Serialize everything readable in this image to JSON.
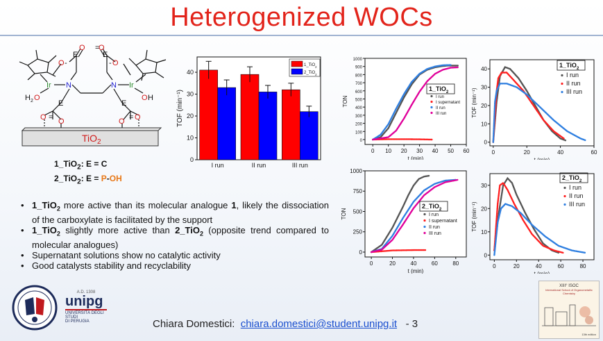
{
  "slide": {
    "title": "Heterogenized WOCs",
    "page_number": "- 3",
    "author": "Chiara Domestici:",
    "email": "chiara.domestici@student.unipg.it"
  },
  "structure": {
    "support": "TiO2",
    "compound_1_label": "1_TiO2: E = C",
    "compound_2_label": "2_TiO2: E = P-OH",
    "compound_1_name": "1_TiO",
    "compound_1_rest": ": E = C",
    "compound_2_name": "2_TiO",
    "compound_2_mid": ": E = ",
    "compound_2_p": "P",
    "compound_2_dash": "-",
    "compound_2_oh": "OH"
  },
  "bullets": [
    "1_TiO2 more active than its molecular analogue 1, likely the dissociation of the carboxylate is facilitated by the support",
    "1_TiO2 slightly more active than 2_TiO2 (opposite trend compared to molecular analogues)",
    "Supernatant solutions show no catalytic activity",
    "Good catalysts stability and recyclability"
  ],
  "bullet_parts": {
    "b1_a": "1_TiO",
    "b1_b": " more active than its molecular analogue ",
    "b1_c": "1",
    "b1_d": ", likely the dissociation of the carboxylate is facilitated by the support",
    "b2_a": "1_TiO",
    "b2_b": " slightly more active than ",
    "b2_c": "2_TiO",
    "b2_d": " (opposite trend compared to molecular analogues)",
    "b3": "Supernatant solutions show no catalytic activity",
    "b4": "Good catalysts stability and recyclability",
    "sub2": "2"
  },
  "logos": {
    "unipg_top": "A.D. 1308",
    "unipg_name": "unipg",
    "unipg_sub1": "UNIVERSITÀ DEGLI STUDI",
    "unipg_sub2": "DI PERUGIA",
    "poster_line1": "XIII° ISOC",
    "poster_line2": "International School of Organometallic Chemistry",
    "poster_edition": "13th edition"
  },
  "chart_data": [
    {
      "type": "bar",
      "ylabel": "TOF (min⁻¹)",
      "categories": [
        "I run",
        "II run",
        "III run"
      ],
      "ylim": [
        0,
        47
      ],
      "yticks": [
        0,
        10,
        20,
        30,
        40
      ],
      "series": [
        {
          "name": "1_TiO2",
          "color": "#ff0000",
          "values": [
            41,
            39,
            32
          ],
          "errors": [
            4,
            3.5,
            3
          ]
        },
        {
          "name": "2_TiO2",
          "color": "#0000ff",
          "values": [
            33,
            31,
            22
          ],
          "errors": [
            3.5,
            3,
            2.5
          ]
        }
      ]
    },
    {
      "type": "line",
      "label": "1_TiO2",
      "xlabel": "t (min)",
      "ylabel": "TON",
      "xlim": [
        -5,
        60
      ],
      "ylim": [
        -60,
        1000
      ],
      "xticks": [
        0,
        10,
        20,
        30,
        40,
        50,
        60
      ],
      "yticks": [
        0,
        100,
        200,
        300,
        400,
        500,
        600,
        700,
        800,
        900,
        1000
      ],
      "legend": [
        "I run",
        "I supernatant",
        "II run",
        "III run"
      ],
      "series": [
        {
          "name": "I run",
          "color": "#555555",
          "x": [
            0,
            5,
            10,
            15,
            20,
            25,
            30,
            35,
            40,
            45,
            48,
            55
          ],
          "y": [
            0,
            30,
            140,
            330,
            520,
            680,
            800,
            860,
            890,
            905,
            910,
            910
          ]
        },
        {
          "name": "I supernatant",
          "color": "#ff2020",
          "x": [
            0,
            10,
            20,
            30,
            38
          ],
          "y": [
            0,
            5,
            5,
            3,
            0
          ]
        },
        {
          "name": "II run",
          "color": "#2f7fe0",
          "x": [
            0,
            5,
            10,
            15,
            20,
            25,
            30,
            35,
            40,
            45,
            50
          ],
          "y": [
            0,
            60,
            190,
            380,
            560,
            710,
            810,
            870,
            900,
            915,
            918
          ]
        },
        {
          "name": "III run",
          "color": "#e0009a",
          "x": [
            0,
            10,
            15,
            20,
            25,
            30,
            35,
            40,
            45,
            50,
            55
          ],
          "y": [
            0,
            30,
            110,
            260,
            430,
            590,
            720,
            810,
            860,
            885,
            890
          ]
        }
      ]
    },
    {
      "type": "line",
      "label": "1_TiO2",
      "xlabel": "t (min)",
      "ylabel": "TOF (min⁻¹)",
      "xlim": [
        -2,
        60
      ],
      "ylim": [
        -2,
        45
      ],
      "xticks": [
        0,
        20,
        40,
        60
      ],
      "yticks": [
        0,
        10,
        20,
        30,
        40
      ],
      "legend": [
        "I run",
        "II run",
        "III run"
      ],
      "series": [
        {
          "name": "I run",
          "color": "#555555",
          "x": [
            0,
            2,
            4,
            7,
            10,
            15,
            20,
            25,
            30,
            35,
            40,
            43
          ],
          "y": [
            0,
            22,
            36,
            41,
            40,
            35,
            28,
            20,
            12,
            6,
            2,
            1
          ]
        },
        {
          "name": "II run",
          "color": "#ff2020",
          "x": [
            0,
            2,
            3,
            5,
            8,
            12,
            18,
            24,
            30,
            36,
            42
          ],
          "y": [
            0,
            28,
            35,
            38,
            38,
            34,
            28,
            20,
            12,
            6,
            2
          ]
        },
        {
          "name": "III run",
          "color": "#2f7fe0",
          "x": [
            0,
            1,
            2,
            4,
            8,
            14,
            20,
            28,
            36,
            44,
            52,
            55
          ],
          "y": [
            0,
            22,
            28,
            32,
            32,
            30,
            26,
            19,
            12,
            6,
            2,
            1
          ]
        }
      ]
    },
    {
      "type": "line",
      "label": "2_TiO2",
      "xlabel": "t (min)",
      "ylabel": "TON",
      "xlim": [
        -6,
        90
      ],
      "ylim": [
        -60,
        1000
      ],
      "xticks": [
        0,
        20,
        40,
        60,
        80
      ],
      "yticks": [
        0,
        250,
        500,
        750,
        1000
      ],
      "legend": [
        "I run",
        "I supernatant",
        "II run",
        "III run"
      ],
      "series": [
        {
          "name": "I run",
          "color": "#555555",
          "x": [
            0,
            10,
            20,
            30,
            35,
            40,
            45,
            50,
            55
          ],
          "y": [
            0,
            90,
            300,
            560,
            700,
            820,
            900,
            930,
            940
          ]
        },
        {
          "name": "I supernatant",
          "color": "#ff2020",
          "x": [
            0,
            20,
            40,
            52
          ],
          "y": [
            0,
            20,
            25,
            25
          ]
        },
        {
          "name": "II run",
          "color": "#2f7fe0",
          "x": [
            0,
            10,
            20,
            30,
            40,
            50,
            60,
            70,
            80
          ],
          "y": [
            0,
            40,
            200,
            420,
            620,
            760,
            840,
            880,
            890
          ]
        },
        {
          "name": "III run",
          "color": "#e0009a",
          "x": [
            0,
            10,
            20,
            30,
            40,
            50,
            60,
            70,
            80,
            82
          ],
          "y": [
            0,
            30,
            150,
            340,
            540,
            700,
            800,
            860,
            885,
            890
          ]
        }
      ]
    },
    {
      "type": "line",
      "label": "2_TiO2",
      "xlabel": "t (min)",
      "ylabel": "TOF (min⁻¹)",
      "xlim": [
        -4,
        90
      ],
      "ylim": [
        -2,
        35
      ],
      "xticks": [
        0,
        20,
        40,
        60,
        80
      ],
      "yticks": [
        0,
        10,
        20,
        30
      ],
      "legend": [
        "I run",
        "II run",
        "III run"
      ],
      "series": [
        {
          "name": "I run",
          "color": "#555555",
          "x": [
            0,
            4,
            8,
            12,
            16,
            20,
            28,
            36,
            44,
            52,
            58
          ],
          "y": [
            2,
            18,
            30,
            33,
            31,
            26,
            18,
            11,
            5,
            2,
            1
          ]
        },
        {
          "name": "II run",
          "color": "#ff2020",
          "x": [
            0,
            3,
            5,
            8,
            12,
            18,
            26,
            34,
            44,
            54,
            62
          ],
          "y": [
            2,
            22,
            30,
            31,
            28,
            22,
            15,
            9,
            4,
            2,
            1
          ]
        },
        {
          "name": "III run",
          "color": "#2f7fe0",
          "x": [
            0,
            3,
            6,
            10,
            16,
            24,
            34,
            46,
            58,
            70,
            82
          ],
          "y": [
            0,
            14,
            20,
            22,
            21,
            18,
            13,
            8,
            4,
            2,
            1
          ]
        }
      ]
    }
  ]
}
